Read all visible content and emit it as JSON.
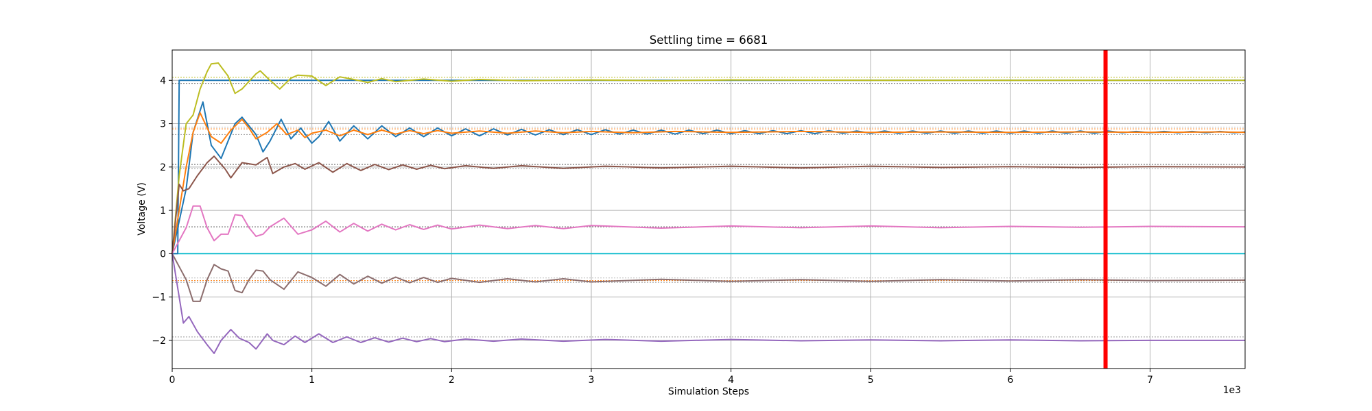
{
  "chart_data": {
    "type": "line",
    "title": "Settling time = 6681",
    "xlabel": "Simulation Steps",
    "ylabel": "Voltage (V)",
    "x_offset_label": "1e3",
    "xlim": [
      0,
      7.68
    ],
    "ylim": [
      -2.65,
      4.7
    ],
    "xticks": [
      0,
      1,
      2,
      3,
      4,
      5,
      6,
      7
    ],
    "xtick_labels": [
      "0",
      "1",
      "2",
      "3",
      "4",
      "5",
      "6",
      "7"
    ],
    "yticks": [
      -2,
      -1,
      0,
      1,
      2,
      3,
      4
    ],
    "ytick_labels": [
      "−2",
      "−1",
      "0",
      "1",
      "2",
      "3",
      "4"
    ],
    "grid": true,
    "settling_line": {
      "x": 6.681,
      "color": "#ff0000"
    },
    "reference_lines": [
      {
        "y": 4.07,
        "color": "#bcbd22"
      },
      {
        "y": 3.93,
        "color": "#555555"
      },
      {
        "y": 2.92,
        "color": "#bbbbbb"
      },
      {
        "y": 2.88,
        "color": "#ff7f0e"
      },
      {
        "y": 2.75,
        "color": "#999999"
      },
      {
        "y": 2.06,
        "color": "#555555"
      },
      {
        "y": 1.96,
        "color": "#999999"
      },
      {
        "y": 0.62,
        "color": "#555555"
      },
      {
        "y": -0.56,
        "color": "#bbbbbb"
      },
      {
        "y": -0.62,
        "color": "#ff7f0e"
      },
      {
        "y": -0.66,
        "color": "#999999"
      },
      {
        "y": -1.92,
        "color": "#999999"
      }
    ],
    "series": [
      {
        "color": "#17becf",
        "x": [
          0,
          7.68
        ],
        "y": [
          0,
          0
        ]
      },
      {
        "color": "#1f77b4",
        "x": [
          0,
          0.04,
          0.05,
          7.68
        ],
        "y": [
          0,
          0,
          4.0,
          4.0
        ]
      },
      {
        "color": "#bcbd22",
        "x": [
          0,
          0.05,
          0.1,
          0.15,
          0.2,
          0.25,
          0.28,
          0.33,
          0.4,
          0.45,
          0.5,
          0.6,
          0.63,
          0.7,
          0.77,
          0.85,
          0.9,
          1.0,
          1.1,
          1.2,
          1.3,
          1.4,
          1.5,
          1.6,
          1.8,
          2.0,
          2.2,
          2.5,
          3.0,
          3.5,
          4.0,
          5.0,
          6.0,
          7.0,
          7.68
        ],
        "y": [
          0,
          1.8,
          3.0,
          3.2,
          3.8,
          4.2,
          4.38,
          4.4,
          4.1,
          3.7,
          3.8,
          4.15,
          4.22,
          4.0,
          3.8,
          4.05,
          4.12,
          4.1,
          3.88,
          4.08,
          4.02,
          3.95,
          4.04,
          3.97,
          4.03,
          3.98,
          4.02,
          3.99,
          4.01,
          3.99,
          4.01,
          4.0,
          4.0,
          4.0,
          4.0
        ]
      },
      {
        "color": "#1f77b4",
        "x": [
          0,
          0.1,
          0.15,
          0.22,
          0.28,
          0.35,
          0.4,
          0.45,
          0.5,
          0.6,
          0.65,
          0.7,
          0.78,
          0.85,
          0.92,
          1.0,
          1.05,
          1.12,
          1.2,
          1.3,
          1.4,
          1.5,
          1.6,
          1.7,
          1.8,
          1.9,
          2.0,
          2.1,
          2.2,
          2.3,
          2.4,
          2.5,
          2.6,
          2.7,
          2.8,
          2.9,
          3.0,
          3.1,
          3.2,
          3.3,
          3.4,
          3.5,
          3.6,
          3.7,
          3.8,
          3.9,
          4.0,
          4.1,
          4.2,
          4.3,
          4.4,
          4.5,
          4.6,
          4.7,
          4.8,
          4.9,
          5.0,
          5.1,
          5.2,
          5.3,
          5.4,
          5.5,
          5.6,
          5.7,
          5.8,
          5.9,
          6.0,
          6.1,
          6.2,
          6.3,
          6.4,
          6.5,
          6.6,
          6.7,
          6.8,
          6.9,
          7.0,
          7.1,
          7.2,
          7.3,
          7.4,
          7.5,
          7.6,
          7.68
        ],
        "y": [
          0,
          1.5,
          2.8,
          3.5,
          2.5,
          2.2,
          2.6,
          3.0,
          3.15,
          2.75,
          2.35,
          2.6,
          3.1,
          2.65,
          2.9,
          2.55,
          2.7,
          3.05,
          2.6,
          2.95,
          2.65,
          2.95,
          2.7,
          2.9,
          2.7,
          2.9,
          2.72,
          2.88,
          2.72,
          2.88,
          2.74,
          2.87,
          2.74,
          2.86,
          2.75,
          2.86,
          2.75,
          2.86,
          2.76,
          2.85,
          2.76,
          2.85,
          2.76,
          2.85,
          2.77,
          2.85,
          2.77,
          2.84,
          2.77,
          2.84,
          2.77,
          2.84,
          2.77,
          2.84,
          2.78,
          2.83,
          2.78,
          2.83,
          2.78,
          2.83,
          2.78,
          2.83,
          2.78,
          2.83,
          2.78,
          2.83,
          2.78,
          2.83,
          2.78,
          2.83,
          2.78,
          2.83,
          2.78,
          2.83,
          2.79,
          2.82,
          2.79,
          2.82,
          2.79,
          2.82,
          2.79,
          2.82,
          2.79,
          2.81
        ]
      },
      {
        "color": "#ff7f0e",
        "x": [
          0,
          0.05,
          0.1,
          0.15,
          0.2,
          0.28,
          0.35,
          0.42,
          0.5,
          0.55,
          0.6,
          0.68,
          0.75,
          0.82,
          0.9,
          0.95,
          1.0,
          1.1,
          1.2,
          1.3,
          1.4,
          1.5,
          1.6,
          1.7,
          1.8,
          1.9,
          2.0,
          2.2,
          2.4,
          2.6,
          2.8,
          3.0,
          3.3,
          3.6,
          4.0,
          4.5,
          5.0,
          5.5,
          6.0,
          6.5,
          7.0,
          7.5,
          7.68
        ],
        "y": [
          0,
          1.0,
          2.0,
          2.8,
          3.25,
          2.7,
          2.55,
          2.85,
          3.1,
          2.9,
          2.65,
          2.8,
          3.0,
          2.75,
          2.85,
          2.68,
          2.78,
          2.85,
          2.72,
          2.85,
          2.75,
          2.85,
          2.76,
          2.84,
          2.77,
          2.84,
          2.78,
          2.83,
          2.78,
          2.83,
          2.79,
          2.82,
          2.79,
          2.82,
          2.8,
          2.82,
          2.8,
          2.81,
          2.8,
          2.81,
          2.8,
          2.81,
          2.8
        ]
      },
      {
        "color": "#8c564b",
        "x": [
          0,
          0.05,
          0.08,
          0.12,
          0.18,
          0.25,
          0.3,
          0.38,
          0.42,
          0.5,
          0.6,
          0.68,
          0.72,
          0.8,
          0.88,
          0.95,
          1.05,
          1.15,
          1.25,
          1.35,
          1.45,
          1.55,
          1.65,
          1.75,
          1.85,
          1.95,
          2.1,
          2.3,
          2.5,
          2.8,
          3.1,
          3.5,
          4.0,
          4.5,
          5.0,
          5.5,
          6.0,
          6.5,
          7.0,
          7.68
        ],
        "y": [
          0,
          1.6,
          1.45,
          1.5,
          1.8,
          2.1,
          2.25,
          1.95,
          1.75,
          2.1,
          2.05,
          2.22,
          1.85,
          2.0,
          2.08,
          1.95,
          2.1,
          1.88,
          2.08,
          1.92,
          2.06,
          1.94,
          2.05,
          1.95,
          2.04,
          1.96,
          2.03,
          1.97,
          2.03,
          1.97,
          2.02,
          1.98,
          2.02,
          1.98,
          2.02,
          1.99,
          2.01,
          1.99,
          2.01,
          2.0
        ]
      },
      {
        "color": "#e377c2",
        "x": [
          0,
          0.05,
          0.1,
          0.15,
          0.2,
          0.25,
          0.3,
          0.35,
          0.4,
          0.45,
          0.5,
          0.55,
          0.6,
          0.65,
          0.7,
          0.8,
          0.9,
          1.0,
          1.1,
          1.2,
          1.3,
          1.4,
          1.5,
          1.6,
          1.7,
          1.8,
          1.9,
          2.0,
          2.2,
          2.4,
          2.6,
          2.8,
          3.0,
          3.5,
          4.0,
          4.5,
          5.0,
          5.5,
          6.0,
          6.5,
          7.0,
          7.68
        ],
        "y": [
          0,
          0.3,
          0.6,
          1.1,
          1.1,
          0.6,
          0.3,
          0.45,
          0.45,
          0.9,
          0.88,
          0.6,
          0.4,
          0.45,
          0.62,
          0.82,
          0.45,
          0.55,
          0.75,
          0.5,
          0.7,
          0.52,
          0.68,
          0.55,
          0.67,
          0.56,
          0.66,
          0.57,
          0.66,
          0.58,
          0.65,
          0.58,
          0.65,
          0.59,
          0.64,
          0.6,
          0.64,
          0.6,
          0.63,
          0.61,
          0.63,
          0.62
        ]
      },
      {
        "color": "#8c6d6d",
        "x": [
          0,
          0.05,
          0.1,
          0.15,
          0.2,
          0.25,
          0.3,
          0.35,
          0.4,
          0.45,
          0.5,
          0.55,
          0.6,
          0.65,
          0.7,
          0.8,
          0.9,
          1.0,
          1.1,
          1.2,
          1.3,
          1.4,
          1.5,
          1.6,
          1.7,
          1.8,
          1.9,
          2.0,
          2.2,
          2.4,
          2.6,
          2.8,
          3.0,
          3.5,
          4.0,
          4.5,
          5.0,
          5.5,
          6.0,
          6.5,
          7.0,
          7.68
        ],
        "y": [
          0,
          -0.3,
          -0.6,
          -1.1,
          -1.1,
          -0.6,
          -0.25,
          -0.35,
          -0.4,
          -0.85,
          -0.9,
          -0.6,
          -0.38,
          -0.4,
          -0.6,
          -0.82,
          -0.42,
          -0.55,
          -0.75,
          -0.48,
          -0.7,
          -0.52,
          -0.68,
          -0.54,
          -0.67,
          -0.55,
          -0.66,
          -0.57,
          -0.66,
          -0.58,
          -0.65,
          -0.58,
          -0.65,
          -0.59,
          -0.64,
          -0.6,
          -0.64,
          -0.6,
          -0.63,
          -0.6,
          -0.62,
          -0.61
        ]
      },
      {
        "color": "#9467bd",
        "x": [
          0,
          0.05,
          0.08,
          0.12,
          0.18,
          0.25,
          0.3,
          0.35,
          0.42,
          0.48,
          0.55,
          0.6,
          0.68,
          0.72,
          0.8,
          0.88,
          0.95,
          1.05,
          1.15,
          1.25,
          1.35,
          1.45,
          1.55,
          1.65,
          1.75,
          1.85,
          1.95,
          2.1,
          2.3,
          2.5,
          2.8,
          3.1,
          3.5,
          4.0,
          4.5,
          5.0,
          5.5,
          6.0,
          6.5,
          7.0,
          7.68
        ],
        "y": [
          0,
          -1.0,
          -1.6,
          -1.45,
          -1.8,
          -2.1,
          -2.3,
          -2.0,
          -1.75,
          -1.95,
          -2.05,
          -2.2,
          -1.85,
          -2.0,
          -2.1,
          -1.9,
          -2.05,
          -1.85,
          -2.05,
          -1.92,
          -2.05,
          -1.94,
          -2.04,
          -1.95,
          -2.03,
          -1.96,
          -2.03,
          -1.97,
          -2.02,
          -1.97,
          -2.02,
          -1.98,
          -2.02,
          -1.98,
          -2.01,
          -1.99,
          -2.01,
          -1.99,
          -2.01,
          -2.0,
          -2.0
        ]
      }
    ]
  }
}
